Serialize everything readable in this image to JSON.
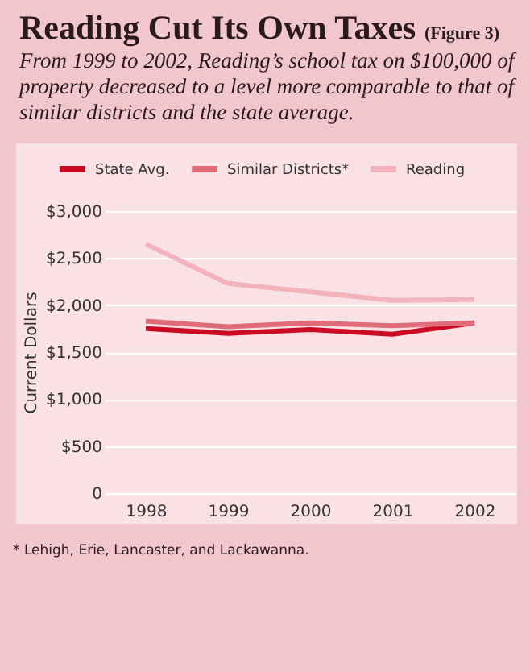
{
  "chart_data": {
    "type": "line",
    "title": "Reading Cut Its Own Taxes (Figure 3)",
    "subtitle": "From 1999 to 2002, Reading’s school tax on $100,000 of property decreased to a level more comparable to that of similar districts and the state average.",
    "ylabel": "Current Dollars",
    "categories": [
      "1998",
      "1999",
      "2000",
      "2001",
      "2002"
    ],
    "series": [
      {
        "name": "State Avg.",
        "color": "#cc0a24",
        "values": [
          1750,
          1700,
          1740,
          1690,
          1810
        ]
      },
      {
        "name": "Similar Districts*",
        "color": "#e06c7a",
        "values": [
          1830,
          1770,
          1810,
          1780,
          1810
        ]
      },
      {
        "name": "Reading",
        "color": "#f2b3bc",
        "values": [
          2650,
          2230,
          2140,
          2050,
          2060
        ]
      }
    ],
    "ylim": [
      0,
      3000
    ],
    "yticks": [
      0,
      {
        "value": 500,
        "label": "$500"
      },
      {
        "value": 1000,
        "label": "$1,000"
      },
      {
        "value": 1500,
        "label": "$1,500"
      },
      {
        "value": 2000,
        "label": "$2,000"
      },
      {
        "value": 2500,
        "label": "$2,500"
      },
      {
        "value": 3000,
        "label": "$3,000"
      }
    ],
    "grid": "y",
    "legend": "top",
    "marker": "none",
    "line_style": "solid",
    "annotations": [
      "* Lehigh, Erie, Lancaster, and Lackawanna."
    ]
  }
}
